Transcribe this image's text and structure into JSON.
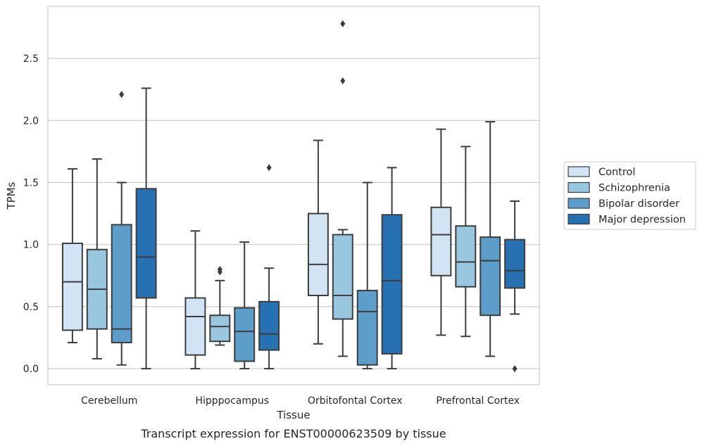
{
  "chart_data": {
    "type": "box",
    "xlabel": "Tissue",
    "ylabel": "TPMs",
    "caption": "Transcript expression for ENST00000623509 by tissue",
    "ylim": [
      -0.13,
      2.92
    ],
    "yticks": [
      0.0,
      0.5,
      1.0,
      1.5,
      2.0,
      2.5
    ],
    "ytick_labels": [
      "0.0",
      "0.5",
      "1.0",
      "1.5",
      "2.0",
      "2.5"
    ],
    "grid": "horizontal",
    "legend_position": "right",
    "categories": [
      "Cerebellum",
      "Hipppocampus",
      "Orbitofontal Cortex",
      "Prefrontal Cortex"
    ],
    "series": [
      {
        "name": "Control",
        "color": "#d2e3f3",
        "boxes": [
          {
            "whislo": 0.21,
            "q1": 0.31,
            "med": 0.7,
            "q3": 1.01,
            "whishi": 1.61,
            "fliers": []
          },
          {
            "whislo": 0.0,
            "q1": 0.11,
            "med": 0.42,
            "q3": 0.57,
            "whishi": 1.11,
            "fliers": []
          },
          {
            "whislo": 0.2,
            "q1": 0.59,
            "med": 0.84,
            "q3": 1.25,
            "whishi": 1.84,
            "fliers": []
          },
          {
            "whislo": 0.27,
            "q1": 0.75,
            "med": 1.08,
            "q3": 1.3,
            "whishi": 1.93,
            "fliers": []
          }
        ]
      },
      {
        "name": "Schizophrenia",
        "color": "#9ac7e0",
        "boxes": [
          {
            "whislo": 0.08,
            "q1": 0.32,
            "med": 0.64,
            "q3": 0.96,
            "whishi": 1.69,
            "fliers": []
          },
          {
            "whislo": 0.19,
            "q1": 0.22,
            "med": 0.34,
            "q3": 0.43,
            "whishi": 0.71,
            "fliers": [
              0.78,
              0.8
            ]
          },
          {
            "whislo": 0.1,
            "q1": 0.4,
            "med": 0.59,
            "q3": 1.08,
            "whishi": 1.12,
            "fliers": [
              2.32,
              2.78
            ]
          },
          {
            "whislo": 0.26,
            "q1": 0.66,
            "med": 0.86,
            "q3": 1.15,
            "whishi": 1.79,
            "fliers": []
          }
        ]
      },
      {
        "name": "Bipolar disorder",
        "color": "#5c9ec9",
        "boxes": [
          {
            "whislo": 0.03,
            "q1": 0.21,
            "med": 0.32,
            "q3": 1.16,
            "whishi": 1.5,
            "fliers": [
              2.21
            ]
          },
          {
            "whislo": 0.0,
            "q1": 0.06,
            "med": 0.3,
            "q3": 0.49,
            "whishi": 1.02,
            "fliers": []
          },
          {
            "whislo": 0.0,
            "q1": 0.03,
            "med": 0.46,
            "q3": 0.63,
            "whishi": 1.5,
            "fliers": []
          },
          {
            "whislo": 0.1,
            "q1": 0.43,
            "med": 0.87,
            "q3": 1.06,
            "whishi": 1.99,
            "fliers": []
          }
        ]
      },
      {
        "name": "Major depression",
        "color": "#2770b2",
        "boxes": [
          {
            "whislo": 0.0,
            "q1": 0.57,
            "med": 0.9,
            "q3": 1.45,
            "whishi": 2.26,
            "fliers": []
          },
          {
            "whislo": 0.0,
            "q1": 0.15,
            "med": 0.28,
            "q3": 0.54,
            "whishi": 0.81,
            "fliers": [
              1.62
            ]
          },
          {
            "whislo": 0.0,
            "q1": 0.12,
            "med": 0.71,
            "q3": 1.24,
            "whishi": 1.62,
            "fliers": []
          },
          {
            "whislo": 0.44,
            "q1": 0.65,
            "med": 0.79,
            "q3": 1.04,
            "whishi": 1.35,
            "fliers": [
              0.0
            ]
          }
        ]
      }
    ]
  }
}
